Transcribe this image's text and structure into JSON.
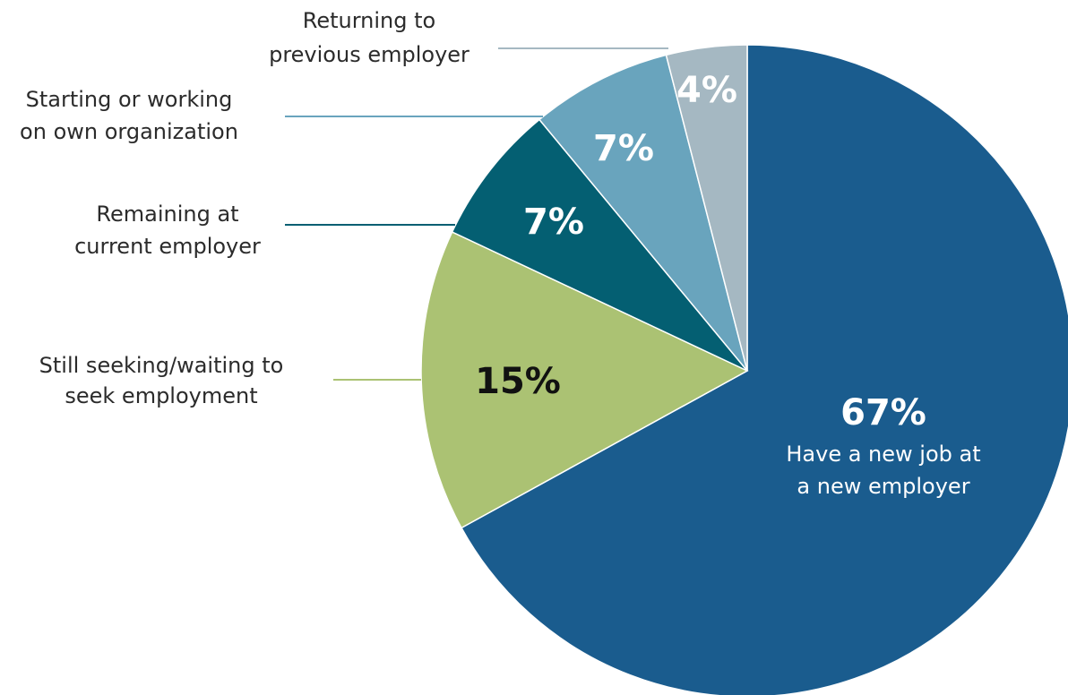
{
  "chart_data": {
    "type": "pie",
    "title": "",
    "slices": [
      {
        "label_lines": [
          "Have a new job at",
          "a new employer"
        ],
        "value": 67,
        "value_label": "67%",
        "color": "#1a5c8e",
        "text_color": "#ffffff"
      },
      {
        "label_lines": [
          "Still seeking/waiting to",
          "seek employment"
        ],
        "value": 15,
        "value_label": "15%",
        "color": "#abc273",
        "text_color": "#111111",
        "leader_color": "#abc273"
      },
      {
        "label_lines": [
          "Remaining at",
          "current employer"
        ],
        "value": 7,
        "value_label": "7%",
        "color": "#045f72",
        "text_color": "#ffffff",
        "leader_color": "#045f72"
      },
      {
        "label_lines": [
          "Starting or working",
          "on own organization"
        ],
        "value": 7,
        "value_label": "7%",
        "color": "#69a4bd",
        "text_color": "#ffffff",
        "leader_color": "#69a4bd"
      },
      {
        "label_lines": [
          "Returning to",
          "previous employer"
        ],
        "value": 4,
        "value_label": "4%",
        "color": "#a5b8c2",
        "text_color": "#ffffff",
        "leader_color": "#a5b8c2"
      }
    ],
    "start_at": "12 o'clock",
    "direction": "counter-clockwise",
    "legend": "none (callout labels with leader lines on the left)"
  }
}
